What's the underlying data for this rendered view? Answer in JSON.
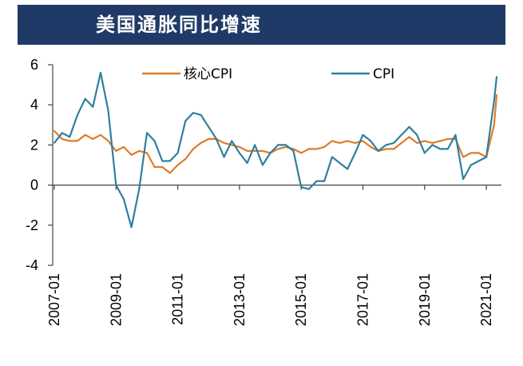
{
  "chart_data": {
    "type": "line",
    "title": "美国通胀同比增速",
    "xlabel": "",
    "ylabel": "",
    "ylim": [
      -4,
      6
    ],
    "yticks": [
      "6",
      "4",
      "2",
      "0",
      "-2",
      "-4"
    ],
    "xticks": [
      "2007-01",
      "2009-01",
      "2011-01",
      "2013-01",
      "2015-01",
      "2017-01",
      "2019-01",
      "2021-01"
    ],
    "legend_position": "top",
    "grid": false,
    "x": [
      "2007-01",
      "2007-04",
      "2007-07",
      "2007-10",
      "2008-01",
      "2008-04",
      "2008-07",
      "2008-10",
      "2009-01",
      "2009-04",
      "2009-07",
      "2009-10",
      "2010-01",
      "2010-04",
      "2010-07",
      "2010-10",
      "2011-01",
      "2011-04",
      "2011-07",
      "2011-10",
      "2012-01",
      "2012-04",
      "2012-07",
      "2012-10",
      "2013-01",
      "2013-04",
      "2013-07",
      "2013-10",
      "2014-01",
      "2014-04",
      "2014-07",
      "2014-10",
      "2015-01",
      "2015-04",
      "2015-07",
      "2015-10",
      "2016-01",
      "2016-04",
      "2016-07",
      "2016-10",
      "2017-01",
      "2017-04",
      "2017-07",
      "2017-10",
      "2018-01",
      "2018-04",
      "2018-07",
      "2018-10",
      "2019-01",
      "2019-04",
      "2019-07",
      "2019-10",
      "2020-01",
      "2020-04",
      "2020-07",
      "2020-10",
      "2021-01",
      "2021-04",
      "2021-05"
    ],
    "series": [
      {
        "name": "核心CPI",
        "color": "#e07b25",
        "values": [
          2.7,
          2.3,
          2.2,
          2.2,
          2.5,
          2.3,
          2.5,
          2.2,
          1.7,
          1.9,
          1.5,
          1.7,
          1.6,
          0.9,
          0.9,
          0.6,
          1.0,
          1.3,
          1.8,
          2.1,
          2.3,
          2.3,
          2.1,
          2.0,
          1.9,
          1.7,
          1.7,
          1.7,
          1.6,
          1.8,
          1.9,
          1.8,
          1.6,
          1.8,
          1.8,
          1.9,
          2.2,
          2.1,
          2.2,
          2.1,
          2.2,
          1.9,
          1.7,
          1.8,
          1.8,
          2.1,
          2.4,
          2.1,
          2.2,
          2.1,
          2.2,
          2.3,
          2.3,
          1.4,
          1.6,
          1.6,
          1.4,
          3.0,
          4.5
        ]
      },
      {
        "name": "CPI",
        "color": "#2e7fa0",
        "values": [
          2.1,
          2.6,
          2.4,
          3.5,
          4.3,
          3.9,
          5.6,
          3.7,
          0.0,
          -0.7,
          -2.1,
          -0.2,
          2.6,
          2.2,
          1.2,
          1.2,
          1.6,
          3.2,
          3.6,
          3.5,
          2.9,
          2.3,
          1.4,
          2.2,
          1.6,
          1.1,
          2.0,
          1.0,
          1.6,
          2.0,
          2.0,
          1.7,
          -0.1,
          -0.2,
          0.2,
          0.2,
          1.4,
          1.1,
          0.8,
          1.6,
          2.5,
          2.2,
          1.7,
          2.0,
          2.1,
          2.5,
          2.9,
          2.5,
          1.6,
          2.0,
          1.8,
          1.8,
          2.5,
          0.3,
          1.0,
          1.2,
          1.4,
          4.2,
          5.4
        ]
      }
    ]
  }
}
